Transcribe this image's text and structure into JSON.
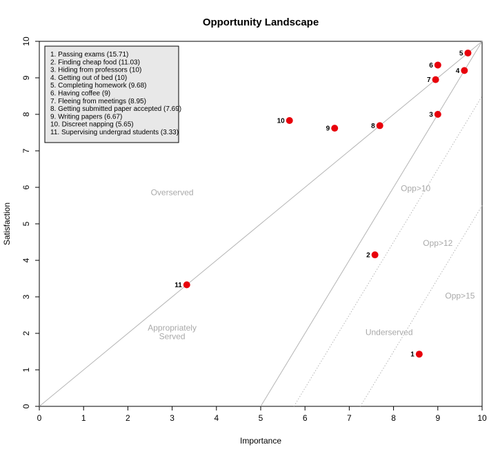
{
  "chart_data": {
    "type": "scatter",
    "title": "Opportunity Landscape",
    "xlabel": "Importance",
    "ylabel": "Satisfaction",
    "xlim": [
      0,
      10
    ],
    "ylim": [
      0,
      10
    ],
    "xticks": [
      "0",
      "1",
      "2",
      "3",
      "4",
      "5",
      "6",
      "7",
      "8",
      "9",
      "10"
    ],
    "yticks": [
      "0",
      "1",
      "2",
      "3",
      "4",
      "5",
      "6",
      "7",
      "8",
      "9",
      "10"
    ],
    "point_color": "#e8000b",
    "line_color": "#b4b4b4",
    "legend_position": "top-left",
    "points": [
      {
        "label": "1",
        "x": 8.58,
        "y": 1.43
      },
      {
        "label": "2",
        "x": 7.58,
        "y": 4.15
      },
      {
        "label": "3",
        "x": 9.0,
        "y": 8.0
      },
      {
        "label": "4",
        "x": 9.6,
        "y": 9.2
      },
      {
        "label": "5",
        "x": 9.68,
        "y": 9.68
      },
      {
        "label": "6",
        "x": 9.0,
        "y": 9.35
      },
      {
        "label": "7",
        "x": 8.95,
        "y": 8.95
      },
      {
        "label": "8",
        "x": 7.69,
        "y": 7.69
      },
      {
        "label": "9",
        "x": 6.67,
        "y": 7.62
      },
      {
        "label": "10",
        "x": 5.65,
        "y": 7.83
      },
      {
        "label": "11",
        "x": 3.33,
        "y": 3.33
      }
    ],
    "legend": [
      "1. Passing exams (15.71)",
      "2. Finding cheap food (11.03)",
      "3. Hiding from professors (10)",
      "4. Getting out of bed (10)",
      "5. Completing homework (9.68)",
      "6. Having coffee (9)",
      "7. Fleeing from meetings (8.95)",
      "8. Getting submitted paper accepted (7.69)",
      "9. Writing papers (6.67)",
      "10. Discreet napping (5.65)",
      "11. Supervising undergrad students (3.33)"
    ],
    "reference_lines": [
      {
        "name": "diagonal",
        "style": "solid",
        "from": [
          0,
          0
        ],
        "to": [
          10,
          10
        ]
      },
      {
        "name": "opp10",
        "style": "solid",
        "from": [
          5,
          0
        ],
        "to": [
          10,
          10
        ]
      },
      {
        "name": "opp12",
        "style": "dotted",
        "from": [
          5.75,
          0
        ],
        "to": [
          10,
          8.5
        ]
      },
      {
        "name": "opp15",
        "style": "dotted",
        "from": [
          7.25,
          0
        ],
        "to": [
          10,
          5.5
        ]
      }
    ],
    "region_labels": [
      {
        "text": "Overserved",
        "x": 3.0,
        "y": 5.78
      },
      {
        "text": "Appropriately",
        "x": 3.0,
        "y": 2.08
      },
      {
        "text": "Served",
        "x": 3.0,
        "y": 1.84
      },
      {
        "text": "Opp>10",
        "x": 8.5,
        "y": 5.9
      },
      {
        "text": "Opp>12",
        "x": 9.0,
        "y": 4.4
      },
      {
        "text": "Opp>15",
        "x": 9.5,
        "y": 2.95
      },
      {
        "text": "Underserved",
        "x": 7.9,
        "y": 1.95
      }
    ]
  }
}
